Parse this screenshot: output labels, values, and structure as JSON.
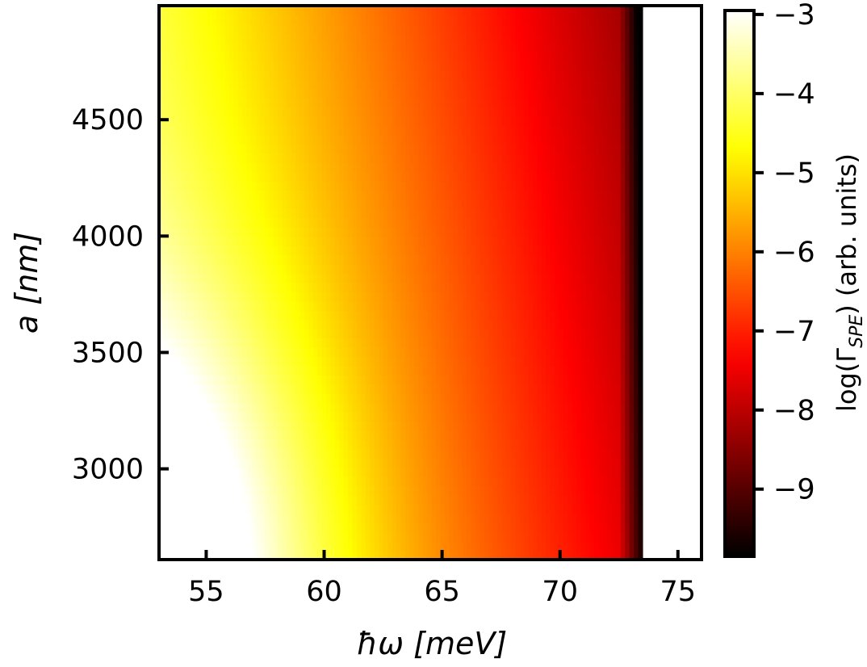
{
  "chart_data": {
    "type": "heatmap",
    "xlabel": "ħω [meV]",
    "ylabel": "a [nm]",
    "xlim": [
      53,
      76
    ],
    "ylim": [
      2610,
      4990
    ],
    "xticks": [
      55,
      60,
      65,
      70,
      75
    ],
    "yticks": [
      3000,
      3500,
      4000,
      4500
    ],
    "xtick_labels": [
      "55",
      "60",
      "65",
      "70",
      "75"
    ],
    "ytick_labels": [
      "3000",
      "3500",
      "4000",
      "4500"
    ],
    "colorscale": "hot",
    "colorbar": {
      "label_prefix": "log(Γ",
      "label_sub": "SPE",
      "label_suffix": ") (arb. units)",
      "range": [
        -9.85,
        -2.95
      ],
      "ticks": [
        -3,
        -4,
        -5,
        -6,
        -7,
        -8,
        -9
      ],
      "tick_labels": [
        "−3",
        "−4",
        "−5",
        "−6",
        "−7",
        "−8",
        "−9"
      ]
    },
    "cutoff_x": 73.5,
    "value_samples": [
      {
        "x": 53.2,
        "y": 2620,
        "z": -3.0
      },
      {
        "x": 56,
        "y": 4900,
        "z": -4.9
      },
      {
        "x": 60,
        "y": 3300,
        "z": -5.0
      },
      {
        "x": 65,
        "y": 2750,
        "z": -5.0
      },
      {
        "x": 65,
        "y": 4800,
        "z": -5.7
      },
      {
        "x": 70,
        "y": 3800,
        "z": -6.4
      },
      {
        "x": 72.5,
        "y": 4000,
        "z": -7.0
      },
      {
        "x": 73.4,
        "y": 4000,
        "z": -8.6
      }
    ],
    "grid": false
  }
}
